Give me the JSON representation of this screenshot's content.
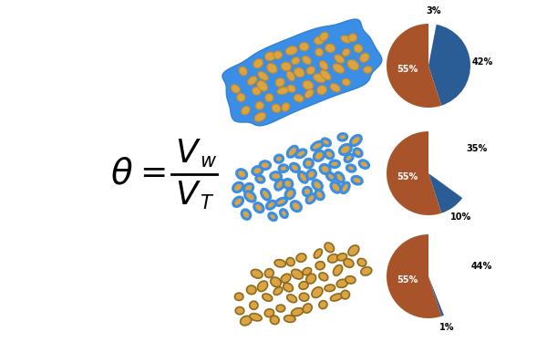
{
  "formula": {
    "symbol": "θ",
    "relation": "=",
    "numerator": {
      "base": "V",
      "subscript": "w"
    },
    "denominator": {
      "base": "V",
      "subscript": "T"
    }
  },
  "chart_data": [
    {
      "type": "pie",
      "values": [
        3,
        42,
        55
      ],
      "colors": [
        "#ffffff",
        "#2a5d96",
        "#a9532a"
      ],
      "data_labels": true,
      "value_labels": [
        "3%",
        "42%",
        "55%"
      ]
    },
    {
      "type": "pie",
      "values": [
        35,
        10,
        55
      ],
      "colors": [
        "#ffffff",
        "#2a5d96",
        "#a9532a"
      ],
      "data_labels": true,
      "value_labels": [
        "35%",
        "10%",
        "55%"
      ]
    },
    {
      "type": "pie",
      "values": [
        44,
        1,
        55
      ],
      "colors": [
        "#ffffff",
        "#2a5d96",
        "#a9532a"
      ],
      "data_labels": true,
      "value_labels": [
        "44%",
        "1%",
        "55%"
      ]
    }
  ]
}
